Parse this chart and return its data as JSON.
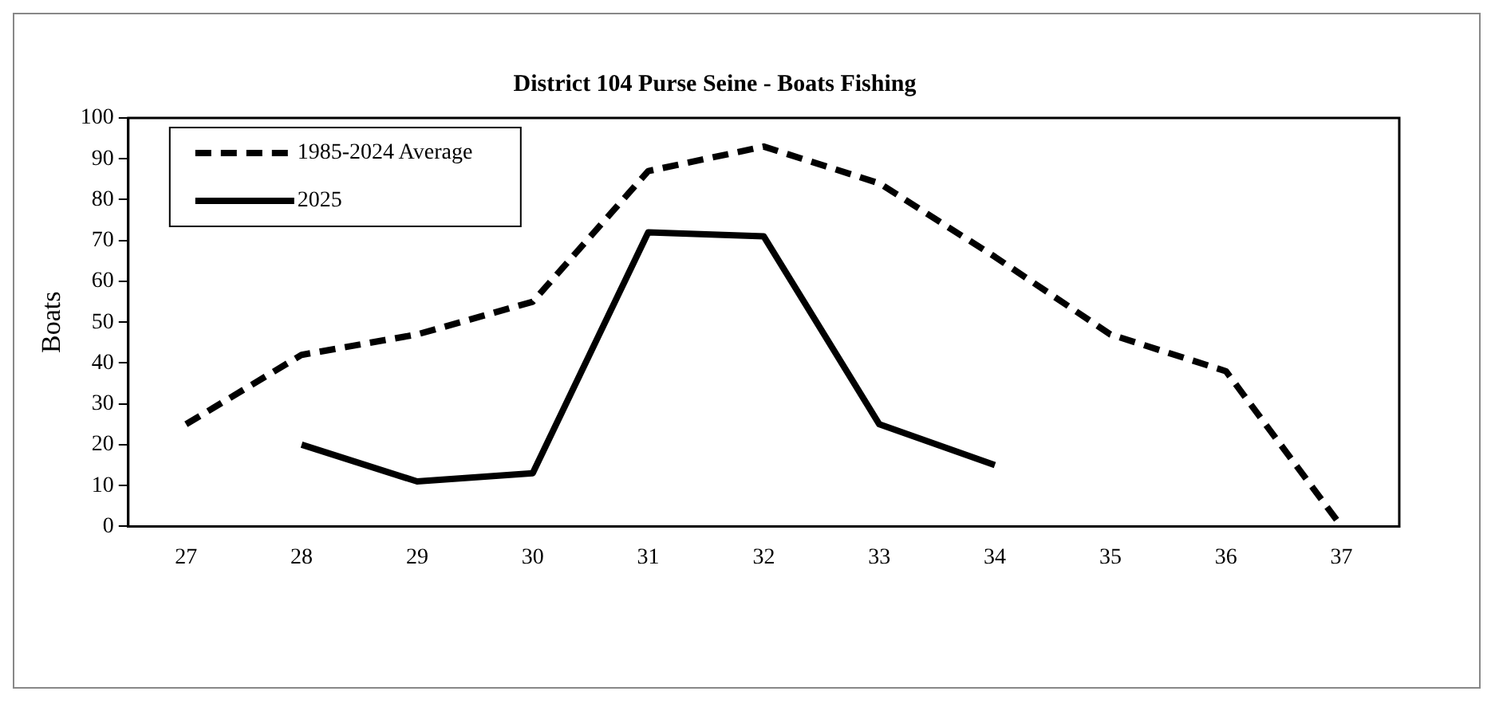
{
  "chart_data": {
    "type": "line",
    "title": "District 104 Purse Seine - Boats Fishing",
    "ylabel": "Boats",
    "categories": [
      "27",
      "28",
      "29",
      "30",
      "31",
      "32",
      "33",
      "34",
      "35",
      "36",
      "37"
    ],
    "series": [
      {
        "name": "1985-2024 Average",
        "color": "#000000",
        "line_style": "dashed",
        "values": [
          25,
          42,
          47,
          55,
          87,
          93,
          84,
          66,
          47,
          38,
          0
        ]
      },
      {
        "name": "2025",
        "color": "#000000",
        "line_style": "solid",
        "values": [
          null,
          20,
          11,
          13,
          72,
          71,
          25,
          15,
          null,
          null,
          null
        ]
      }
    ],
    "ylim": [
      0,
      100
    ],
    "yticks": [
      0,
      10,
      20,
      30,
      40,
      50,
      60,
      70,
      80,
      90,
      100
    ],
    "grid": false,
    "legend": "top left",
    "marker": "none"
  }
}
